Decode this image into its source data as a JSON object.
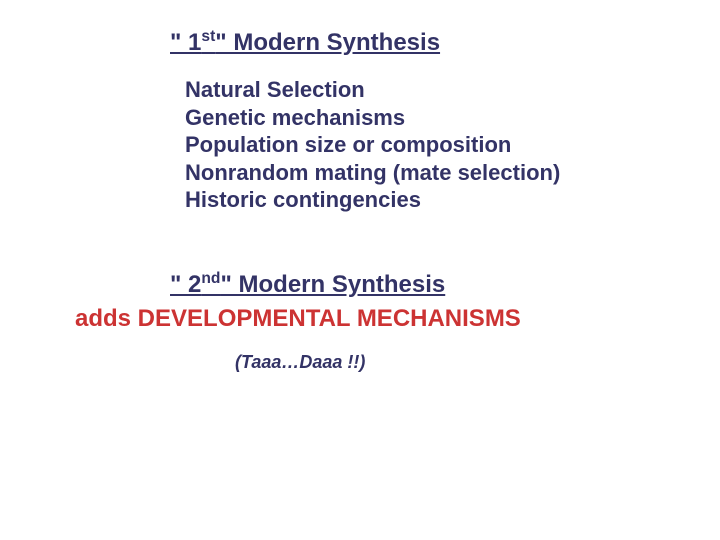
{
  "heading1_html": "\" 1<sup>st</sup>\" Modern Synthesis",
  "list": {
    "i0": "Natural Selection",
    "i1": "Genetic mechanisms",
    "i2": "Population size or composition",
    "i3": "Nonrandom mating (mate selection)",
    "i4": "Historic contingencies"
  },
  "heading2_html": "\" 2<sup>nd</sup>\" Modern Synthesis",
  "dev_line": "adds DEVELOPMENTAL MECHANISMS",
  "tada": "(Taaa…Daaa !!)",
  "colors": {
    "text_primary": "#333366",
    "accent": "#CC3333",
    "background": "#ffffff"
  },
  "font_sizes": {
    "heading": 24,
    "list": 22,
    "tada": 18
  }
}
